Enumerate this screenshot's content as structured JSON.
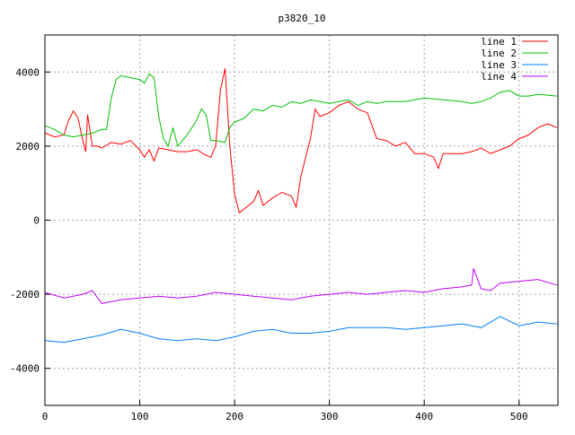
{
  "chart_data": {
    "type": "line",
    "title": "p3820_10",
    "xlabel": "",
    "ylabel": "",
    "xlim": [
      0,
      541
    ],
    "ylim": [
      -5000,
      5000
    ],
    "grid": true,
    "legend_position": "top-right",
    "x_ticks": [
      0,
      100,
      200,
      300,
      400,
      500
    ],
    "y_ticks": [
      -4000,
      -2000,
      0,
      2000,
      4000
    ],
    "series": [
      {
        "name": "line 1",
        "color": "#ff0000",
        "x": [
          0,
          10,
          20,
          25,
          30,
          35,
          40,
          43,
          45,
          50,
          55,
          60,
          70,
          80,
          90,
          100,
          105,
          110,
          115,
          120,
          130,
          140,
          150,
          160,
          170,
          175,
          180,
          185,
          190,
          195,
          200,
          205,
          210,
          220,
          225,
          230,
          240,
          250,
          260,
          265,
          270,
          280,
          285,
          290,
          300,
          310,
          320,
          330,
          340,
          350,
          360,
          370,
          380,
          390,
          400,
          410,
          415,
          420,
          430,
          440,
          450,
          460,
          470,
          480,
          490,
          500,
          510,
          520,
          530,
          540
        ],
        "y": [
          2350,
          2250,
          2300,
          2700,
          2950,
          2750,
          2150,
          1850,
          2850,
          2000,
          2000,
          1950,
          2100,
          2050,
          2150,
          1900,
          1700,
          1900,
          1600,
          1950,
          1900,
          1850,
          1850,
          1900,
          1750,
          1700,
          2000,
          3500,
          4100,
          2000,
          700,
          200,
          300,
          500,
          800,
          400,
          600,
          750,
          650,
          350,
          1200,
          2200,
          3000,
          2800,
          2900,
          3100,
          3200,
          3000,
          2900,
          2200,
          2150,
          2000,
          2100,
          1800,
          1800,
          1700,
          1400,
          1800,
          1800,
          1800,
          1850,
          1950,
          1800,
          1900,
          2000,
          2200,
          2300,
          2500,
          2600,
          2500
        ]
      },
      {
        "name": "line 2",
        "color": "#00c000",
        "x": [
          0,
          10,
          20,
          30,
          40,
          50,
          60,
          65,
          70,
          75,
          80,
          90,
          100,
          105,
          110,
          115,
          120,
          125,
          130,
          135,
          140,
          150,
          155,
          160,
          165,
          170,
          175,
          180,
          190,
          195,
          200,
          210,
          220,
          230,
          240,
          250,
          260,
          270,
          280,
          290,
          300,
          310,
          320,
          330,
          340,
          350,
          360,
          380,
          400,
          420,
          440,
          450,
          460,
          470,
          480,
          490,
          500,
          510,
          520,
          540
        ],
        "y": [
          2550,
          2450,
          2300,
          2250,
          2300,
          2350,
          2450,
          2450,
          3300,
          3800,
          3900,
          3850,
          3800,
          3700,
          3950,
          3850,
          2800,
          2200,
          2000,
          2500,
          2000,
          2300,
          2500,
          2700,
          3000,
          2850,
          2150,
          2150,
          2100,
          2500,
          2650,
          2750,
          3000,
          2950,
          3100,
          3050,
          3200,
          3150,
          3250,
          3200,
          3150,
          3200,
          3250,
          3100,
          3200,
          3150,
          3200,
          3200,
          3300,
          3250,
          3200,
          3150,
          3200,
          3300,
          3450,
          3500,
          3350,
          3350,
          3400,
          3350
        ]
      },
      {
        "name": "line 3",
        "color": "#0080ff",
        "x": [
          0,
          20,
          40,
          60,
          80,
          100,
          120,
          140,
          160,
          180,
          200,
          220,
          240,
          260,
          280,
          300,
          320,
          340,
          360,
          380,
          400,
          420,
          440,
          460,
          480,
          500,
          520,
          540
        ],
        "y": [
          -3250,
          -3300,
          -3200,
          -3100,
          -2950,
          -3050,
          -3200,
          -3250,
          -3200,
          -3250,
          -3150,
          -3000,
          -2950,
          -3050,
          -3050,
          -3000,
          -2900,
          -2900,
          -2900,
          -2950,
          -2900,
          -2850,
          -2800,
          -2900,
          -2600,
          -2850,
          -2750,
          -2800
        ]
      },
      {
        "name": "line 4",
        "color": "#c000ff",
        "x": [
          0,
          20,
          40,
          50,
          60,
          80,
          100,
          120,
          140,
          160,
          180,
          200,
          220,
          240,
          260,
          280,
          300,
          320,
          340,
          360,
          380,
          400,
          420,
          440,
          450,
          452,
          460,
          470,
          480,
          500,
          520,
          540
        ],
        "y": [
          -1950,
          -2100,
          -2000,
          -1900,
          -2250,
          -2150,
          -2100,
          -2050,
          -2100,
          -2050,
          -1950,
          -2000,
          -2050,
          -2100,
          -2150,
          -2050,
          -2000,
          -1950,
          -2000,
          -1950,
          -1900,
          -1950,
          -1850,
          -1800,
          -1750,
          -1300,
          -1850,
          -1900,
          -1700,
          -1650,
          -1600,
          -1750
        ]
      }
    ]
  }
}
